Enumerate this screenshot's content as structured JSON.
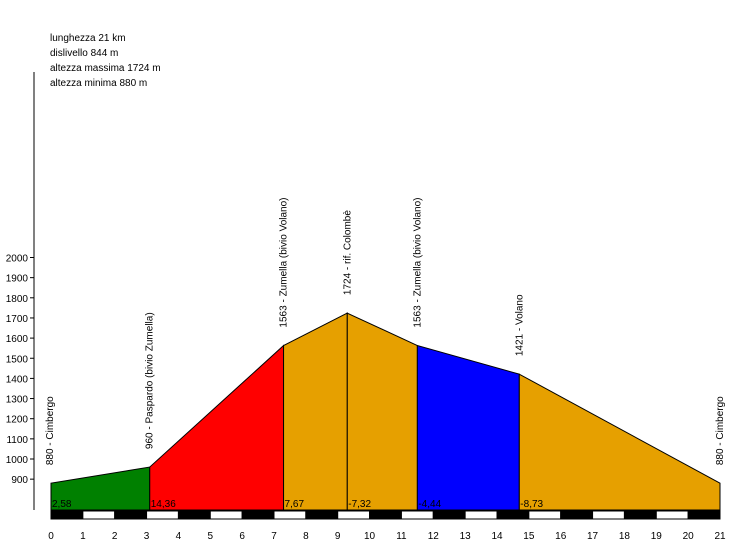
{
  "info": {
    "length": "lunghezza 21 km",
    "climb": "dislivello 844 m",
    "max": "altezza massima 1724 m",
    "min": "altezza minima 880 m"
  },
  "chart_data": {
    "type": "area",
    "title": "",
    "xlabel": "",
    "ylabel": "",
    "xlim": [
      0,
      21
    ],
    "ylim": [
      800,
      2000
    ],
    "x_ticks": [
      "0",
      "1",
      "2",
      "3",
      "4",
      "5",
      "6",
      "7",
      "8",
      "9",
      "10",
      "11",
      "12",
      "13",
      "14",
      "15",
      "16",
      "17",
      "18",
      "19",
      "20",
      "21"
    ],
    "y_ticks": [
      "900",
      "1000",
      "1100",
      "1200",
      "1300",
      "1400",
      "1500",
      "1600",
      "1700",
      "1800",
      "1900",
      "2000"
    ],
    "points": [
      {
        "x": 0,
        "y": 880,
        "label": "880 - Cimbergo"
      },
      {
        "x": 3.1,
        "y": 960,
        "label": "960 - Paspardo (bivio Zumella)"
      },
      {
        "x": 7.3,
        "y": 1563,
        "label": "1563 - Zumella (bivio Volano)"
      },
      {
        "x": 9.3,
        "y": 1724,
        "label": "1724 - rif. Colombè"
      },
      {
        "x": 11.5,
        "y": 1563,
        "label": "1563 - Zumella (bivio Volano)"
      },
      {
        "x": 14.7,
        "y": 1421,
        "label": "1421 - Volano"
      },
      {
        "x": 21,
        "y": 880,
        "label": "880 - Cimbergo"
      }
    ],
    "segments": [
      {
        "gradient": "2,58",
        "color": "#008000"
      },
      {
        "gradient": "14,36",
        "color": "#ff0000"
      },
      {
        "gradient": "7,67",
        "color": "#e6a000"
      },
      {
        "gradient": "-7,32",
        "color": "#e6a000"
      },
      {
        "gradient": "-4,44",
        "color": "#0000ff"
      },
      {
        "gradient": "-8,73",
        "color": "#e6a000"
      }
    ]
  }
}
